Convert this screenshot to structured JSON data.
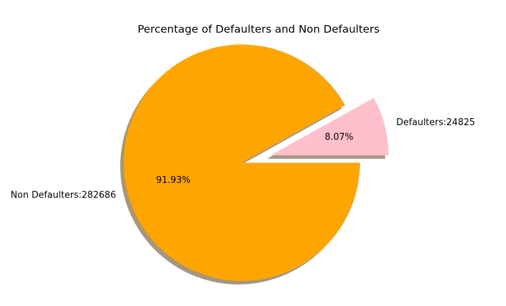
{
  "chart_data": {
    "type": "pie",
    "title": "Percentage of Defaulters and Non Defaulters",
    "slices": [
      {
        "label": "Defaulters:24825",
        "value": 24825,
        "pct_label": "8.07%",
        "color": "#ffc0cb",
        "exploded": true
      },
      {
        "label": "Non Defaulters:282686",
        "value": 282686,
        "pct_label": "91.93%",
        "color": "#ffa500",
        "exploded": false
      }
    ],
    "shadow": true,
    "shadow_color": "#a39783",
    "legend": "none"
  }
}
